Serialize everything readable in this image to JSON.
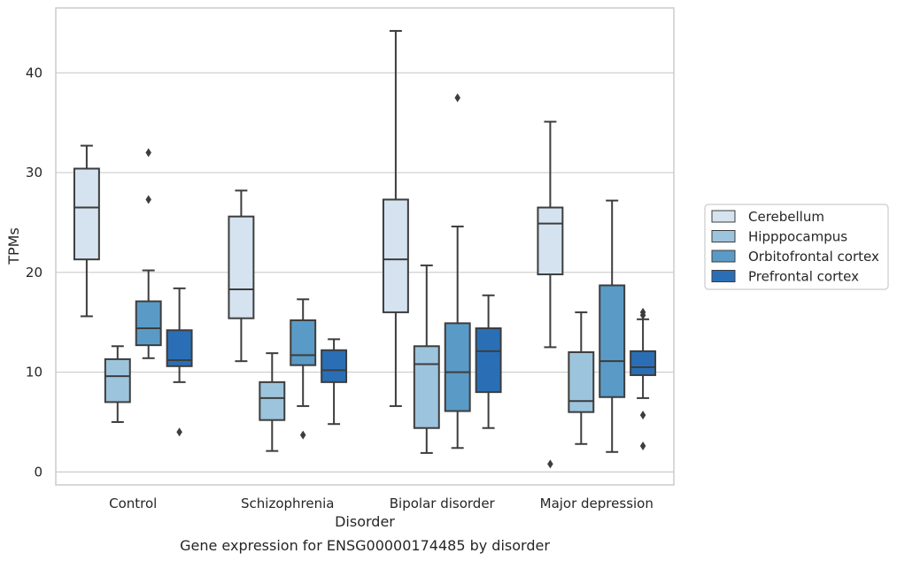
{
  "chart_data": {
    "type": "box",
    "title": "",
    "caption": "Gene expression for ENSG00000174485 by disorder",
    "xlabel": "Disorder",
    "ylabel": "TPMs",
    "ylim": [
      -1.3,
      46.5
    ],
    "yticks": [
      0,
      10,
      20,
      30,
      40
    ],
    "grid": "horizontal",
    "legend_placement": "outside-right",
    "categories": [
      "Control",
      "Schizophrenia",
      "Bipolar disorder",
      "Major depression"
    ],
    "series": [
      {
        "name": "Cerebellum",
        "color": "#d5e3f0",
        "boxes": [
          {
            "whislo": 15.6,
            "q1": 21.3,
            "med": 26.5,
            "q3": 30.4,
            "whishi": 32.7,
            "fliers": []
          },
          {
            "whislo": 11.1,
            "q1": 15.4,
            "med": 18.3,
            "q3": 25.6,
            "whishi": 28.2,
            "fliers": []
          },
          {
            "whislo": 6.6,
            "q1": 16.0,
            "med": 21.3,
            "q3": 27.3,
            "whishi": 44.2,
            "fliers": []
          },
          {
            "whislo": 12.5,
            "q1": 19.8,
            "med": 24.9,
            "q3": 26.5,
            "whishi": 35.1,
            "fliers": [
              0.8
            ]
          }
        ]
      },
      {
        "name": "Hipppocampus",
        "color": "#9dc4dd",
        "boxes": [
          {
            "whislo": 5.0,
            "q1": 7.0,
            "med": 9.6,
            "q3": 11.3,
            "whishi": 12.6,
            "fliers": []
          },
          {
            "whislo": 2.1,
            "q1": 5.2,
            "med": 7.4,
            "q3": 9.0,
            "whishi": 11.9,
            "fliers": []
          },
          {
            "whislo": 1.9,
            "q1": 4.4,
            "med": 10.8,
            "q3": 12.6,
            "whishi": 20.7,
            "fliers": []
          },
          {
            "whislo": 2.8,
            "q1": 6.0,
            "med": 7.1,
            "q3": 12.0,
            "whishi": 16.0,
            "fliers": []
          }
        ]
      },
      {
        "name": "Orbitofrontal cortex",
        "color": "#5a9ac6",
        "boxes": [
          {
            "whislo": 11.4,
            "q1": 12.7,
            "med": 14.4,
            "q3": 17.1,
            "whishi": 20.2,
            "fliers": [
              27.3,
              32.0
            ]
          },
          {
            "whislo": 6.6,
            "q1": 10.7,
            "med": 11.7,
            "q3": 15.2,
            "whishi": 17.3,
            "fliers": [
              3.7
            ]
          },
          {
            "whislo": 2.4,
            "q1": 6.1,
            "med": 10.0,
            "q3": 14.9,
            "whishi": 24.6,
            "fliers": [
              37.5
            ]
          },
          {
            "whislo": 2.0,
            "q1": 7.5,
            "med": 11.1,
            "q3": 18.7,
            "whishi": 27.2,
            "fliers": []
          }
        ]
      },
      {
        "name": "Prefrontal cortex",
        "color": "#2a6fb5",
        "boxes": [
          {
            "whislo": 9.0,
            "q1": 10.6,
            "med": 11.2,
            "q3": 14.2,
            "whishi": 18.4,
            "fliers": [
              4.0
            ]
          },
          {
            "whislo": 4.8,
            "q1": 9.0,
            "med": 10.2,
            "q3": 12.2,
            "whishi": 13.3,
            "fliers": []
          },
          {
            "whislo": 4.4,
            "q1": 8.0,
            "med": 12.1,
            "q3": 14.4,
            "whishi": 17.7,
            "fliers": []
          },
          {
            "whislo": 7.4,
            "q1": 9.7,
            "med": 10.5,
            "q3": 12.1,
            "whishi": 15.3,
            "fliers": [
              16.0,
              15.7,
              5.7,
              2.6
            ]
          }
        ]
      }
    ]
  }
}
